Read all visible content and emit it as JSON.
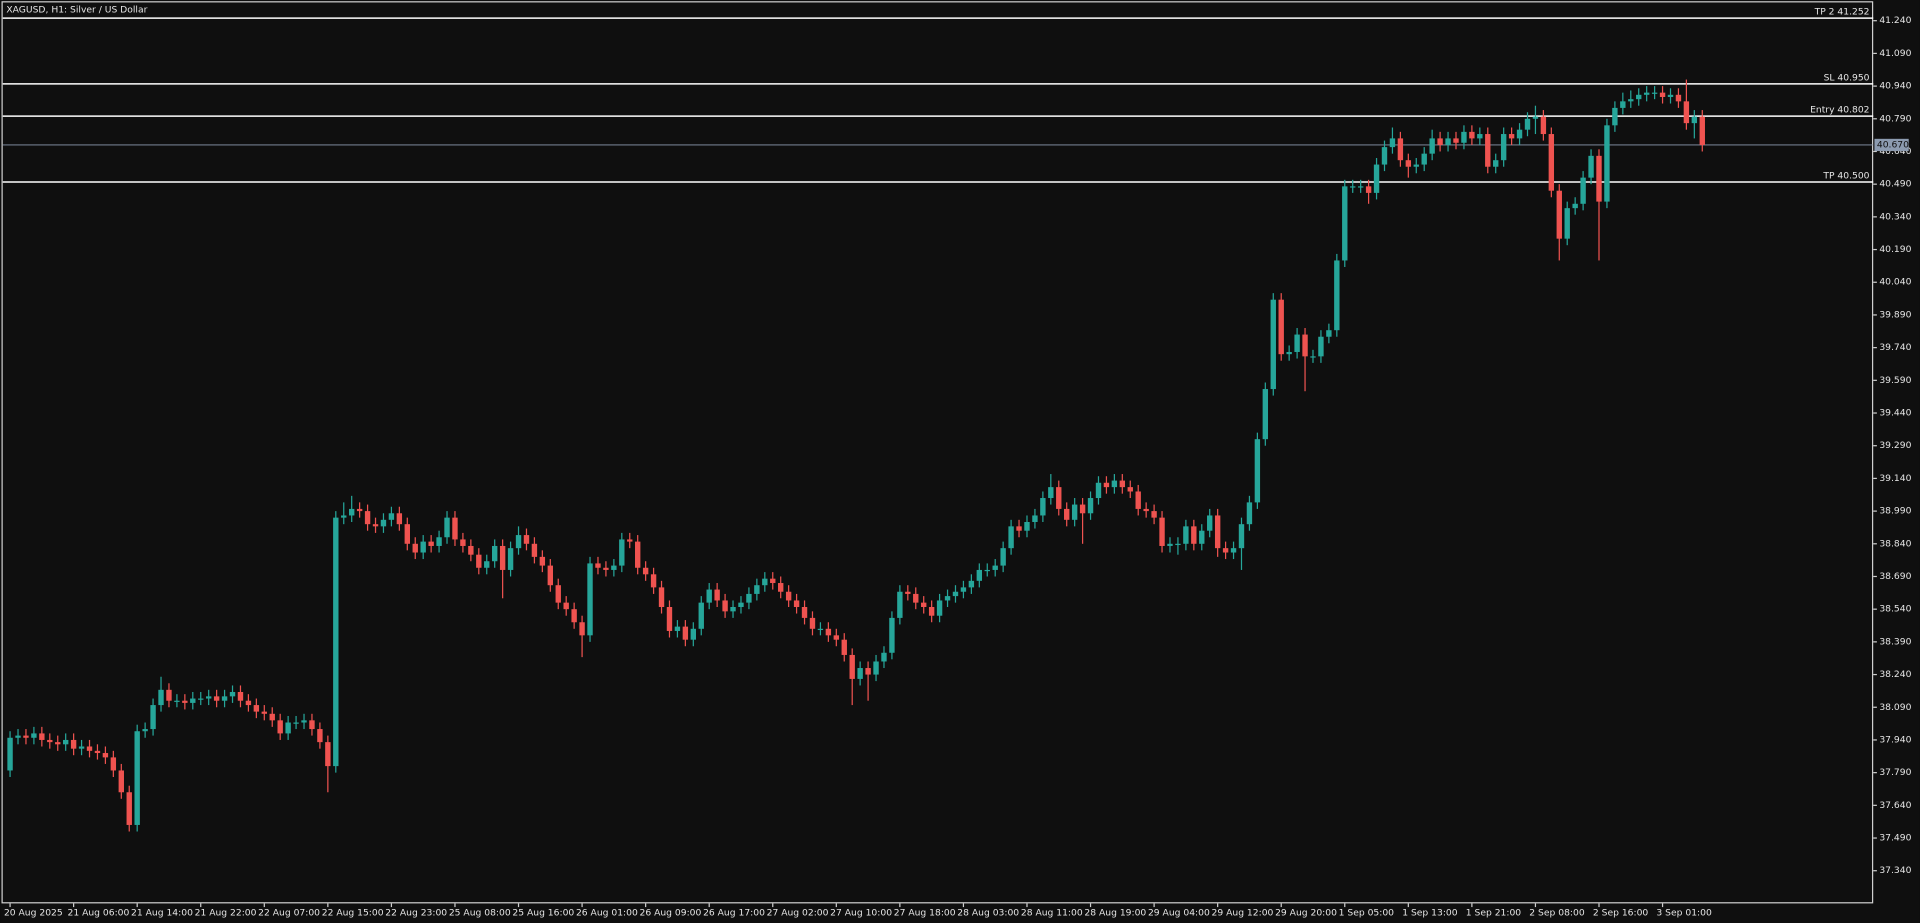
{
  "chart_data": {
    "type": "candlestick",
    "title": "XAGUSD, H1:  Silver / US Dollar",
    "up_color": "#26a69a",
    "down_color": "#ef5350",
    "categories": [
      "20 Aug 2025",
      null,
      null,
      null,
      null,
      null,
      null,
      null,
      "21 Aug 06:00",
      null,
      null,
      null,
      null,
      null,
      null,
      null,
      "21 Aug 14:00",
      null,
      null,
      null,
      null,
      null,
      null,
      null,
      "21 Aug 22:00",
      null,
      null,
      null,
      null,
      null,
      null,
      null,
      "22 Aug 07:00",
      null,
      null,
      null,
      null,
      null,
      null,
      null,
      "22 Aug 15:00",
      null,
      null,
      null,
      null,
      null,
      null,
      null,
      "22 Aug 23:00",
      null,
      null,
      null,
      null,
      null,
      null,
      null,
      "25 Aug 08:00",
      null,
      null,
      null,
      null,
      null,
      null,
      null,
      "25 Aug 16:00",
      null,
      null,
      null,
      null,
      null,
      null,
      null,
      "26 Aug 01:00",
      null,
      null,
      null,
      null,
      null,
      null,
      null,
      "26 Aug 09:00",
      null,
      null,
      null,
      null,
      null,
      null,
      null,
      "26 Aug 17:00",
      null,
      null,
      null,
      null,
      null,
      null,
      null,
      "27 Aug 02:00",
      null,
      null,
      null,
      null,
      null,
      null,
      null,
      "27 Aug 10:00",
      null,
      null,
      null,
      null,
      null,
      null,
      null,
      "27 Aug 18:00",
      null,
      null,
      null,
      null,
      null,
      null,
      null,
      "28 Aug 03:00",
      null,
      null,
      null,
      null,
      null,
      null,
      null,
      "28 Aug 11:00",
      null,
      null,
      null,
      null,
      null,
      null,
      null,
      "28 Aug 19:00",
      null,
      null,
      null,
      null,
      null,
      null,
      null,
      "29 Aug 04:00",
      null,
      null,
      null,
      null,
      null,
      null,
      null,
      "29 Aug 12:00",
      null,
      null,
      null,
      null,
      null,
      null,
      null,
      "29 Aug 20:00",
      null,
      null,
      null,
      null,
      null,
      null,
      null,
      "1 Sep 05:00",
      null,
      null,
      null,
      null,
      null,
      null,
      null,
      "1 Sep 13:00",
      null,
      null,
      null,
      null,
      null,
      null,
      null,
      "1 Sep 21:00",
      null,
      null,
      null,
      null,
      null,
      null,
      null,
      "2 Sep 08:00",
      null,
      null,
      null,
      null,
      null,
      null,
      null,
      "2 Sep 16:00",
      null,
      null,
      null,
      null,
      null,
      null,
      null,
      "3 Sep 01:00",
      null,
      null,
      null,
      null,
      null
    ],
    "open": [
      37.8,
      37.95,
      37.96,
      37.95,
      37.97,
      37.94,
      37.93,
      37.92,
      37.94,
      37.9,
      37.91,
      37.89,
      37.88,
      37.86,
      37.8,
      37.7,
      37.55,
      37.98,
      37.99,
      38.1,
      38.17,
      38.12,
      38.12,
      38.11,
      38.13,
      38.13,
      38.14,
      38.12,
      38.14,
      38.16,
      38.12,
      38.1,
      38.07,
      38.06,
      38.03,
      37.97,
      38.02,
      38.02,
      38.03,
      37.99,
      37.93,
      37.82,
      38.96,
      38.97,
      39.0,
      38.99,
      38.93,
      38.92,
      38.95,
      38.98,
      38.93,
      38.84,
      38.8,
      38.85,
      38.83,
      38.87,
      38.96,
      38.86,
      38.83,
      38.79,
      38.73,
      38.76,
      38.83,
      38.72,
      38.82,
      38.88,
      38.84,
      38.78,
      38.74,
      38.65,
      38.57,
      38.54,
      38.48,
      38.42,
      38.75,
      38.73,
      38.72,
      38.74,
      38.86,
      38.85,
      38.73,
      38.7,
      38.64,
      38.55,
      38.44,
      38.46,
      38.4,
      38.45,
      38.57,
      38.63,
      38.58,
      38.53,
      38.55,
      38.57,
      38.61,
      38.65,
      38.68,
      38.66,
      38.62,
      38.58,
      38.55,
      38.5,
      38.45,
      38.45,
      38.42,
      38.4,
      38.33,
      38.22,
      38.27,
      38.24,
      38.3,
      38.34,
      38.5,
      38.62,
      38.61,
      38.57,
      38.55,
      38.51,
      38.58,
      38.6,
      38.62,
      38.64,
      38.67,
      38.72,
      38.72,
      38.74,
      38.82,
      38.92,
      38.9,
      38.94,
      38.97,
      39.05,
      39.1,
      39.0,
      38.95,
      39.02,
      38.98,
      39.05,
      39.12,
      39.1,
      39.13,
      39.1,
      39.08,
      39.0,
      38.99,
      38.96,
      38.83,
      38.84,
      38.84,
      38.92,
      38.84,
      38.9,
      38.97,
      38.82,
      38.8,
      38.82,
      38.93,
      39.03,
      39.32,
      39.55,
      39.96,
      39.71,
      39.72,
      39.8,
      39.7,
      39.7,
      39.79,
      39.82,
      40.14,
      40.48,
      40.48,
      40.48,
      40.45,
      40.58,
      40.66,
      40.7,
      40.6,
      40.57,
      40.58,
      40.63,
      40.7,
      40.67,
      40.7,
      40.68,
      40.73,
      40.7,
      40.72,
      40.57,
      40.6,
      40.72,
      40.7,
      40.74,
      40.79,
      40.8,
      40.72,
      40.46,
      40.24,
      40.38,
      40.4,
      40.52,
      40.62,
      40.41,
      40.76,
      40.84,
      40.87,
      40.88,
      40.9,
      40.91,
      40.91,
      40.89,
      40.9,
      40.87,
      40.77,
      40.8
    ],
    "high": [
      37.98,
      37.99,
      37.99,
      38.0,
      38.0,
      37.97,
      37.96,
      37.97,
      37.97,
      37.94,
      37.94,
      37.92,
      37.91,
      37.89,
      37.83,
      37.73,
      38.01,
      38.02,
      38.13,
      38.23,
      38.2,
      38.15,
      38.15,
      38.16,
      38.16,
      38.17,
      38.17,
      38.17,
      38.19,
      38.19,
      38.15,
      38.13,
      38.1,
      38.09,
      38.06,
      38.05,
      38.05,
      38.06,
      38.06,
      38.02,
      37.96,
      38.99,
      39.03,
      39.06,
      39.03,
      39.02,
      38.96,
      38.98,
      39.01,
      39.01,
      38.96,
      38.87,
      38.88,
      38.88,
      38.9,
      38.99,
      38.99,
      38.89,
      38.86,
      38.82,
      38.79,
      38.86,
      38.86,
      38.85,
      38.92,
      38.91,
      38.87,
      38.81,
      38.77,
      38.68,
      38.6,
      38.57,
      38.51,
      38.78,
      38.78,
      38.76,
      38.77,
      38.89,
      38.89,
      38.88,
      38.76,
      38.73,
      38.67,
      38.58,
      38.49,
      38.49,
      38.48,
      38.6,
      38.66,
      38.66,
      38.61,
      38.58,
      38.6,
      38.64,
      38.68,
      38.71,
      38.71,
      38.69,
      38.65,
      38.61,
      38.58,
      38.53,
      38.48,
      38.48,
      38.45,
      38.43,
      38.36,
      38.3,
      38.3,
      38.33,
      38.37,
      38.53,
      38.65,
      38.65,
      38.64,
      38.6,
      38.58,
      38.61,
      38.63,
      38.65,
      38.67,
      38.7,
      38.75,
      38.75,
      38.77,
      38.85,
      38.95,
      38.95,
      38.97,
      39.0,
      39.08,
      39.16,
      39.13,
      39.03,
      39.05,
      39.05,
      39.08,
      39.15,
      39.15,
      39.16,
      39.16,
      39.13,
      39.11,
      39.03,
      39.02,
      38.99,
      38.87,
      38.87,
      38.95,
      38.95,
      38.93,
      39.0,
      39.0,
      38.85,
      38.85,
      38.96,
      39.06,
      39.35,
      39.58,
      39.99,
      39.99,
      39.75,
      39.83,
      39.83,
      39.73,
      39.82,
      39.85,
      40.17,
      40.51,
      40.51,
      40.51,
      40.51,
      40.61,
      40.69,
      40.75,
      40.73,
      40.63,
      40.61,
      40.66,
      40.74,
      40.73,
      40.73,
      40.73,
      40.76,
      40.76,
      40.75,
      40.75,
      40.63,
      40.75,
      40.75,
      40.77,
      40.82,
      40.85,
      40.83,
      40.75,
      40.49,
      40.41,
      40.43,
      40.55,
      40.65,
      40.65,
      40.79,
      40.87,
      40.91,
      40.92,
      40.93,
      40.94,
      40.94,
      40.94,
      40.93,
      40.93,
      40.97,
      40.83,
      40.83
    ],
    "low": [
      37.77,
      37.92,
      37.92,
      37.92,
      37.91,
      37.9,
      37.89,
      37.89,
      37.87,
      37.87,
      37.86,
      37.85,
      37.83,
      37.77,
      37.67,
      37.52,
      37.52,
      37.95,
      37.96,
      38.07,
      38.09,
      38.09,
      38.08,
      38.08,
      38.1,
      38.1,
      38.09,
      38.09,
      38.11,
      38.09,
      38.07,
      38.04,
      38.03,
      38.0,
      37.94,
      37.94,
      37.99,
      37.99,
      37.96,
      37.9,
      37.7,
      37.79,
      38.93,
      38.94,
      38.96,
      38.9,
      38.89,
      38.89,
      38.92,
      38.9,
      38.81,
      38.77,
      38.77,
      38.8,
      38.8,
      38.84,
      38.83,
      38.8,
      38.76,
      38.7,
      38.7,
      38.73,
      38.59,
      38.69,
      38.79,
      38.81,
      38.75,
      38.71,
      38.62,
      38.54,
      38.51,
      38.45,
      38.32,
      38.39,
      38.7,
      38.69,
      38.69,
      38.71,
      38.82,
      38.7,
      38.67,
      38.61,
      38.52,
      38.41,
      38.41,
      38.37,
      38.37,
      38.42,
      38.54,
      38.55,
      38.5,
      38.5,
      38.52,
      38.54,
      38.58,
      38.62,
      38.63,
      38.59,
      38.55,
      38.52,
      38.47,
      38.42,
      38.42,
      38.39,
      38.37,
      38.3,
      38.1,
      38.19,
      38.12,
      38.21,
      38.27,
      38.31,
      38.47,
      38.58,
      38.54,
      38.52,
      38.48,
      38.48,
      38.55,
      38.57,
      38.59,
      38.61,
      38.64,
      38.69,
      38.69,
      38.71,
      38.79,
      38.87,
      38.87,
      38.91,
      38.94,
      39.02,
      38.97,
      38.92,
      38.92,
      38.84,
      38.95,
      39.02,
      39.07,
      39.07,
      39.07,
      39.05,
      38.97,
      38.96,
      38.93,
      38.8,
      38.8,
      38.79,
      38.81,
      38.81,
      38.81,
      38.87,
      38.78,
      38.77,
      38.77,
      38.72,
      38.9,
      39.0,
      39.29,
      39.52,
      39.68,
      39.68,
      39.69,
      39.54,
      39.67,
      39.67,
      39.76,
      39.79,
      40.11,
      40.45,
      40.45,
      40.4,
      40.42,
      40.55,
      40.63,
      40.57,
      40.52,
      40.54,
      40.55,
      40.6,
      40.64,
      40.64,
      40.65,
      40.65,
      40.67,
      40.67,
      40.54,
      40.54,
      40.57,
      40.67,
      40.67,
      40.71,
      40.72,
      40.69,
      40.43,
      40.14,
      40.21,
      40.35,
      40.37,
      40.49,
      40.14,
      40.38,
      40.73,
      40.81,
      40.84,
      40.85,
      40.87,
      40.88,
      40.86,
      40.86,
      40.84,
      40.74,
      40.7,
      40.64
    ],
    "close": [
      37.95,
      37.96,
      37.95,
      37.97,
      37.94,
      37.93,
      37.92,
      37.94,
      37.9,
      37.91,
      37.89,
      37.88,
      37.86,
      37.8,
      37.7,
      37.55,
      37.98,
      37.99,
      38.1,
      38.17,
      38.12,
      38.12,
      38.11,
      38.13,
      38.13,
      38.14,
      38.12,
      38.14,
      38.16,
      38.12,
      38.1,
      38.07,
      38.06,
      38.03,
      37.97,
      38.02,
      38.02,
      38.03,
      37.99,
      37.93,
      37.82,
      38.96,
      38.97,
      39.0,
      38.99,
      38.93,
      38.92,
      38.95,
      38.98,
      38.93,
      38.84,
      38.8,
      38.85,
      38.83,
      38.87,
      38.96,
      38.86,
      38.83,
      38.79,
      38.73,
      38.76,
      38.83,
      38.72,
      38.82,
      38.88,
      38.84,
      38.78,
      38.74,
      38.65,
      38.57,
      38.54,
      38.48,
      38.42,
      38.75,
      38.73,
      38.72,
      38.74,
      38.86,
      38.85,
      38.73,
      38.7,
      38.64,
      38.55,
      38.44,
      38.46,
      38.4,
      38.45,
      38.57,
      38.63,
      38.58,
      38.53,
      38.55,
      38.57,
      38.61,
      38.65,
      38.68,
      38.66,
      38.62,
      38.58,
      38.55,
      38.5,
      38.45,
      38.45,
      38.42,
      38.4,
      38.33,
      38.22,
      38.27,
      38.24,
      38.3,
      38.34,
      38.5,
      38.62,
      38.61,
      38.57,
      38.55,
      38.51,
      38.58,
      38.6,
      38.62,
      38.64,
      38.67,
      38.72,
      38.72,
      38.74,
      38.82,
      38.92,
      38.9,
      38.94,
      38.97,
      39.05,
      39.1,
      39.0,
      38.95,
      39.02,
      38.98,
      39.05,
      39.12,
      39.1,
      39.13,
      39.1,
      39.08,
      39.0,
      38.99,
      38.96,
      38.83,
      38.84,
      38.84,
      38.92,
      38.84,
      38.9,
      38.97,
      38.82,
      38.8,
      38.82,
      38.93,
      39.03,
      39.32,
      39.55,
      39.96,
      39.71,
      39.72,
      39.8,
      39.7,
      39.7,
      39.79,
      39.82,
      40.14,
      40.48,
      40.48,
      40.48,
      40.45,
      40.58,
      40.66,
      40.7,
      40.6,
      40.57,
      40.58,
      40.63,
      40.7,
      40.67,
      40.7,
      40.68,
      40.73,
      40.7,
      40.72,
      40.57,
      40.6,
      40.72,
      40.7,
      40.74,
      40.79,
      40.8,
      40.72,
      40.46,
      40.24,
      40.38,
      40.4,
      40.52,
      40.62,
      40.41,
      40.76,
      40.84,
      40.87,
      40.88,
      40.9,
      40.91,
      40.91,
      40.89,
      40.9,
      40.87,
      40.77,
      40.8,
      40.67
    ],
    "ylim": [
      37.19,
      41.335
    ],
    "yticks": [
      {
        "value": 41.24,
        "label": "41.240"
      },
      {
        "value": 41.09,
        "label": "41.090"
      },
      {
        "value": 40.94,
        "label": "40.940"
      },
      {
        "value": 40.79,
        "label": "40.790"
      },
      {
        "value": 40.64,
        "label": "40.640"
      },
      {
        "value": 40.49,
        "label": "40.490"
      },
      {
        "value": 40.34,
        "label": "40.340"
      },
      {
        "value": 40.19,
        "label": "40.190"
      },
      {
        "value": 40.04,
        "label": "40.040"
      },
      {
        "value": 39.89,
        "label": "39.890"
      },
      {
        "value": 39.74,
        "label": "39.740"
      },
      {
        "value": 39.59,
        "label": "39.590"
      },
      {
        "value": 39.44,
        "label": "39.440"
      },
      {
        "value": 39.29,
        "label": "39.290"
      },
      {
        "value": 39.14,
        "label": "39.140"
      },
      {
        "value": 38.99,
        "label": "38.990"
      },
      {
        "value": 38.84,
        "label": "38.840"
      },
      {
        "value": 38.69,
        "label": "38.690"
      },
      {
        "value": 38.54,
        "label": "38.540"
      },
      {
        "value": 38.39,
        "label": "38.390"
      },
      {
        "value": 38.24,
        "label": "38.240"
      },
      {
        "value": 38.09,
        "label": "38.090"
      },
      {
        "value": 37.94,
        "label": "37.940"
      },
      {
        "value": 37.79,
        "label": "37.790"
      },
      {
        "value": 37.64,
        "label": "37.640"
      },
      {
        "value": 37.49,
        "label": "37.490"
      },
      {
        "value": 37.34,
        "label": "37.340"
      }
    ],
    "levels": [
      {
        "label": "TP 2 41.252",
        "value": 41.252
      },
      {
        "label": "SL 40.950",
        "value": 40.95
      },
      {
        "label": "Entry 40.802",
        "value": 40.802
      },
      {
        "label": "TP 40.500",
        "value": 40.5
      }
    ],
    "level_color": "#ffffff",
    "current_price": {
      "value": 40.67,
      "label": "40.670"
    },
    "current_color": "#8c9bb0"
  }
}
